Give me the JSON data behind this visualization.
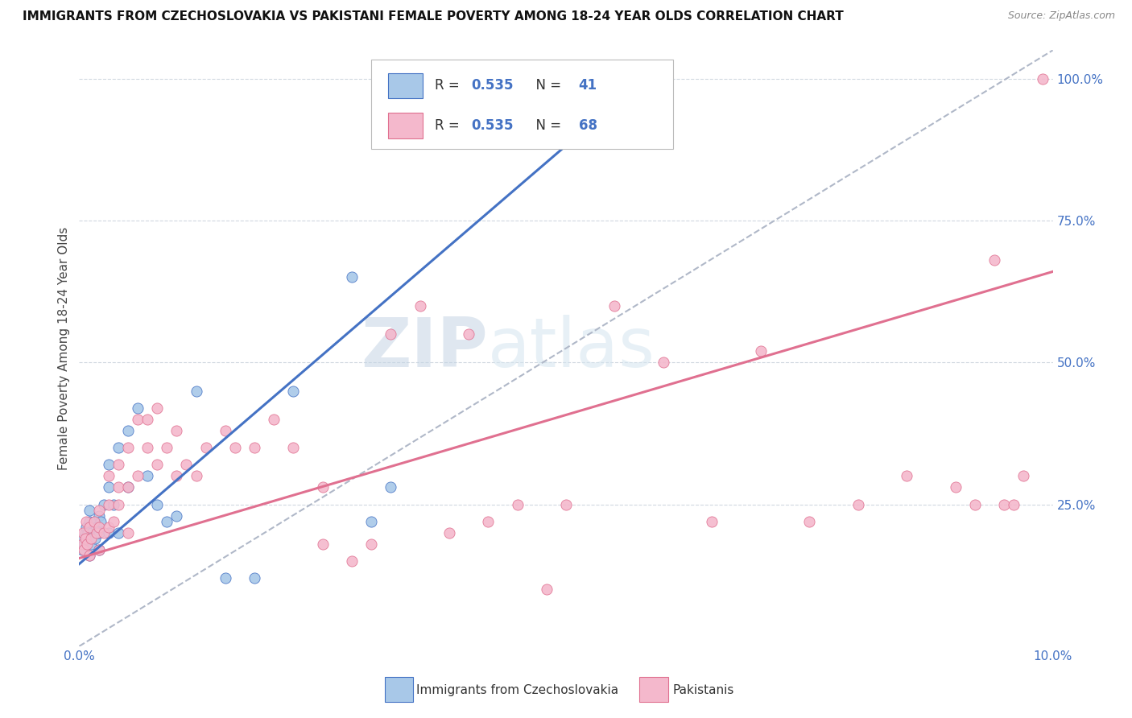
{
  "title": "IMMIGRANTS FROM CZECHOSLOVAKIA VS PAKISTANI FEMALE POVERTY AMONG 18-24 YEAR OLDS CORRELATION CHART",
  "source": "Source: ZipAtlas.com",
  "ylabel": "Female Poverty Among 18-24 Year Olds",
  "legend_label1": "Immigrants from Czechoslovakia",
  "legend_label2": "Pakistanis",
  "r1": 0.535,
  "n1": 41,
  "r2": 0.535,
  "n2": 68,
  "xmin": 0.0,
  "xmax": 0.1,
  "ymin": 0.0,
  "ymax": 1.05,
  "right_yticks": [
    0.0,
    0.25,
    0.5,
    0.75,
    1.0
  ],
  "right_ytick_labels": [
    "",
    "25.0%",
    "50.0%",
    "75.0%",
    "100.0%"
  ],
  "grid_yticks": [
    0.25,
    0.5,
    0.75,
    1.0
  ],
  "color_czech": "#a8c8e8",
  "color_czech_line": "#4472c4",
  "color_pak": "#f4b8cc",
  "color_pak_line": "#e07090",
  "color_axis_labels": "#4472c4",
  "watermark_zip": "ZIP",
  "watermark_atlas": "atlas",
  "czech_scatter_x": [
    0.0003,
    0.0004,
    0.0005,
    0.0006,
    0.0007,
    0.0008,
    0.0009,
    0.001,
    0.001,
    0.001,
    0.0012,
    0.0013,
    0.0015,
    0.0016,
    0.0018,
    0.002,
    0.002,
    0.002,
    0.0022,
    0.0025,
    0.003,
    0.003,
    0.003,
    0.0035,
    0.004,
    0.004,
    0.005,
    0.005,
    0.006,
    0.007,
    0.008,
    0.009,
    0.01,
    0.012,
    0.015,
    0.018,
    0.022,
    0.028,
    0.03,
    0.032,
    0.058
  ],
  "czech_scatter_y": [
    0.17,
    0.19,
    0.18,
    0.2,
    0.21,
    0.19,
    0.2,
    0.16,
    0.22,
    0.24,
    0.18,
    0.2,
    0.22,
    0.19,
    0.21,
    0.17,
    0.2,
    0.23,
    0.22,
    0.25,
    0.2,
    0.28,
    0.32,
    0.25,
    0.2,
    0.35,
    0.28,
    0.38,
    0.42,
    0.3,
    0.25,
    0.22,
    0.23,
    0.45,
    0.12,
    0.12,
    0.45,
    0.65,
    0.22,
    0.28,
    1.0
  ],
  "pak_scatter_x": [
    0.0003,
    0.0004,
    0.0005,
    0.0006,
    0.0007,
    0.0008,
    0.001,
    0.001,
    0.0012,
    0.0015,
    0.0018,
    0.002,
    0.002,
    0.002,
    0.0025,
    0.003,
    0.003,
    0.003,
    0.0035,
    0.004,
    0.004,
    0.004,
    0.005,
    0.005,
    0.005,
    0.006,
    0.006,
    0.007,
    0.007,
    0.008,
    0.008,
    0.009,
    0.01,
    0.01,
    0.011,
    0.012,
    0.013,
    0.015,
    0.016,
    0.018,
    0.02,
    0.022,
    0.025,
    0.025,
    0.028,
    0.03,
    0.032,
    0.035,
    0.038,
    0.04,
    0.042,
    0.045,
    0.048,
    0.05,
    0.055,
    0.06,
    0.065,
    0.07,
    0.075,
    0.08,
    0.085,
    0.09,
    0.092,
    0.094,
    0.095,
    0.096,
    0.097,
    0.099
  ],
  "pak_scatter_y": [
    0.18,
    0.2,
    0.17,
    0.19,
    0.22,
    0.18,
    0.16,
    0.21,
    0.19,
    0.22,
    0.2,
    0.17,
    0.21,
    0.24,
    0.2,
    0.21,
    0.25,
    0.3,
    0.22,
    0.25,
    0.28,
    0.32,
    0.2,
    0.28,
    0.35,
    0.3,
    0.4,
    0.35,
    0.4,
    0.32,
    0.42,
    0.35,
    0.3,
    0.38,
    0.32,
    0.3,
    0.35,
    0.38,
    0.35,
    0.35,
    0.4,
    0.35,
    0.18,
    0.28,
    0.15,
    0.18,
    0.55,
    0.6,
    0.2,
    0.55,
    0.22,
    0.25,
    0.1,
    0.25,
    0.6,
    0.5,
    0.22,
    0.52,
    0.22,
    0.25,
    0.3,
    0.28,
    0.25,
    0.68,
    0.25,
    0.25,
    0.3,
    1.0
  ],
  "czech_line_x0": 0.0,
  "czech_line_y0": 0.145,
  "czech_line_x1": 0.058,
  "czech_line_y1": 1.0,
  "pak_line_x0": 0.0,
  "pak_line_y0": 0.155,
  "pak_line_x1": 0.1,
  "pak_line_y1": 0.66
}
